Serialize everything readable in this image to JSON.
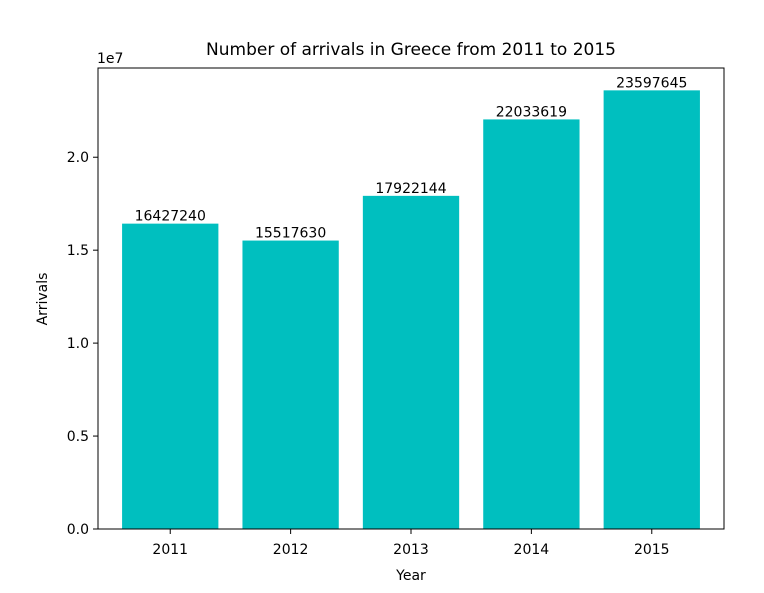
{
  "chart_data": {
    "type": "bar",
    "title": "Number of arrivals in Greece from 2011 to 2015",
    "xlabel": "Year",
    "ylabel": "Arrivals",
    "y_scale_label": "1e7",
    "categories": [
      "2011",
      "2012",
      "2013",
      "2014",
      "2015"
    ],
    "values": [
      16427240,
      15517630,
      17922144,
      22033619,
      23597645
    ],
    "data_labels": [
      "16427240",
      "15517630",
      "17922144",
      "22033619",
      "23597645"
    ],
    "ylim": [
      0,
      24800000
    ],
    "y_ticks": [
      0,
      5000000,
      10000000,
      15000000,
      20000000
    ],
    "y_tick_labels": [
      "0.0",
      "0.5",
      "1.0",
      "1.5",
      "2.0"
    ],
    "grid": false,
    "bar_color": "#00bfbf"
  }
}
